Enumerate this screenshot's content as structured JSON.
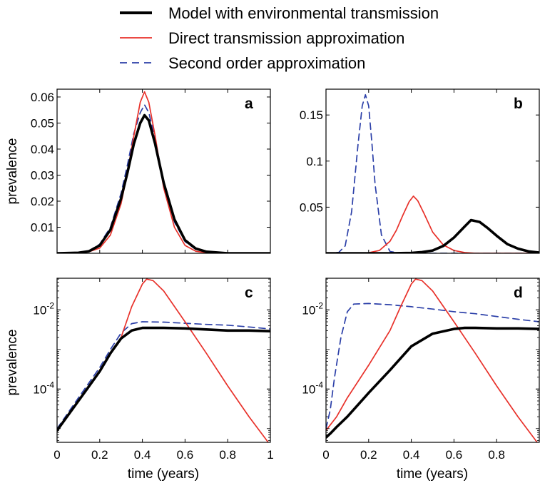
{
  "legend": {
    "entries": [
      {
        "label": "Model with environmental transmission",
        "color": "#000000",
        "style": "solid-thick"
      },
      {
        "label": "Direct transmission approximation",
        "color": "#e8312a",
        "style": "solid"
      },
      {
        "label": "Second order approximation",
        "color": "#2b3fa8",
        "style": "dashed"
      }
    ]
  },
  "colors": {
    "model": "#000000",
    "direct": "#e8312a",
    "second": "#2b3fa8"
  },
  "chart_data": [
    {
      "panel": "a",
      "type": "line",
      "yscale": "linear",
      "xlim": [
        0,
        1
      ],
      "ylim": [
        0,
        0.063
      ],
      "ylabel": "prevalence",
      "xlabel": "",
      "yticks": [
        0.01,
        0.02,
        0.03,
        0.04,
        0.05,
        0.06
      ],
      "yticklabels": [
        "0.01",
        "0.02",
        "0.03",
        "0.04",
        "0.05",
        "0.06"
      ],
      "xticks": [
        0,
        0.2,
        0.4,
        0.6,
        0.8,
        1
      ],
      "xticklabels": [],
      "series": [
        {
          "key": "model",
          "x": [
            0,
            0.1,
            0.15,
            0.2,
            0.25,
            0.3,
            0.33,
            0.36,
            0.39,
            0.41,
            0.43,
            0.46,
            0.5,
            0.55,
            0.6,
            0.65,
            0.7,
            0.8,
            1
          ],
          "y": [
            0,
            0.0002,
            0.0008,
            0.003,
            0.009,
            0.021,
            0.031,
            0.042,
            0.05,
            0.053,
            0.051,
            0.042,
            0.027,
            0.013,
            0.005,
            0.0018,
            0.0006,
            0,
            0
          ]
        },
        {
          "key": "direct",
          "x": [
            0,
            0.1,
            0.15,
            0.2,
            0.25,
            0.3,
            0.33,
            0.36,
            0.39,
            0.41,
            0.43,
            0.46,
            0.5,
            0.55,
            0.6,
            0.65,
            0.7,
            0.8,
            1
          ],
          "y": [
            0,
            0.0001,
            0.0006,
            0.002,
            0.007,
            0.019,
            0.031,
            0.045,
            0.058,
            0.062,
            0.058,
            0.045,
            0.025,
            0.01,
            0.003,
            0.0008,
            0.0002,
            0,
            0
          ]
        },
        {
          "key": "second",
          "x": [
            0,
            0.1,
            0.15,
            0.2,
            0.25,
            0.3,
            0.33,
            0.36,
            0.39,
            0.41,
            0.43,
            0.46,
            0.5,
            0.55,
            0.6,
            0.65,
            0.7,
            0.8,
            1
          ],
          "y": [
            0,
            0.0002,
            0.0009,
            0.0035,
            0.01,
            0.023,
            0.034,
            0.046,
            0.054,
            0.057,
            0.054,
            0.044,
            0.027,
            0.012,
            0.0045,
            0.0015,
            0.0005,
            0,
            0
          ]
        }
      ]
    },
    {
      "panel": "b",
      "type": "line",
      "yscale": "linear",
      "xlim": [
        0,
        1
      ],
      "ylim": [
        0,
        0.178
      ],
      "ylabel": "",
      "xlabel": "",
      "yticks": [
        0.05,
        0.1,
        0.15
      ],
      "yticklabels": [
        "0.05",
        "0.1",
        "0.15"
      ],
      "xticks": [
        0,
        0.2,
        0.4,
        0.6,
        0.8,
        1
      ],
      "xticklabels": [],
      "series": [
        {
          "key": "model",
          "x": [
            0,
            0.3,
            0.4,
            0.45,
            0.5,
            0.55,
            0.6,
            0.65,
            0.68,
            0.72,
            0.76,
            0.8,
            0.85,
            0.9,
            0.95,
            1
          ],
          "y": [
            0,
            0,
            0.0003,
            0.0012,
            0.003,
            0.008,
            0.017,
            0.029,
            0.036,
            0.034,
            0.027,
            0.019,
            0.01,
            0.005,
            0.002,
            0.0008
          ]
        },
        {
          "key": "direct",
          "x": [
            0,
            0.15,
            0.2,
            0.25,
            0.3,
            0.33,
            0.36,
            0.39,
            0.41,
            0.43,
            0.46,
            0.5,
            0.55,
            0.6,
            0.65,
            0.7,
            1
          ],
          "y": [
            0,
            0.0001,
            0.0006,
            0.003,
            0.013,
            0.025,
            0.041,
            0.056,
            0.062,
            0.057,
            0.043,
            0.023,
            0.009,
            0.003,
            0.0008,
            0,
            0
          ]
        },
        {
          "key": "second",
          "x": [
            0,
            0.06,
            0.09,
            0.12,
            0.15,
            0.17,
            0.185,
            0.2,
            0.215,
            0.23,
            0.26,
            0.3,
            0.35,
            1
          ],
          "y": [
            0,
            0.001,
            0.008,
            0.045,
            0.118,
            0.16,
            0.172,
            0.16,
            0.12,
            0.075,
            0.02,
            0.002,
            0,
            0
          ]
        }
      ]
    },
    {
      "panel": "c",
      "type": "line",
      "yscale": "log",
      "xlim": [
        0,
        1
      ],
      "ylim": [
        4.5e-06,
        0.063
      ],
      "ylabel": "prevalence",
      "xlabel": "time (years)",
      "yticks": [
        0.01,
        0.0001
      ],
      "yticklabels": [
        "10^-2",
        "10^-4"
      ],
      "xticks": [
        0,
        0.2,
        0.4,
        0.6,
        0.8,
        1
      ],
      "xticklabels": [
        "0",
        "0.2",
        "0.4",
        "0.6",
        "0.8",
        "1"
      ],
      "series": [
        {
          "key": "model",
          "x": [
            0,
            0.1,
            0.2,
            0.25,
            0.3,
            0.35,
            0.4,
            0.5,
            0.6,
            0.7,
            0.8,
            0.9,
            1
          ],
          "y": [
            9e-06,
            5e-05,
            0.00028,
            0.0008,
            0.0019,
            0.003,
            0.0035,
            0.0035,
            0.0034,
            0.0032,
            0.003,
            0.003,
            0.0029
          ]
        },
        {
          "key": "direct",
          "x": [
            0,
            0.1,
            0.2,
            0.3,
            0.35,
            0.4,
            0.42,
            0.45,
            0.5,
            0.6,
            0.7,
            0.8,
            0.9,
            0.99
          ],
          "y": [
            9e-06,
            5e-05,
            0.0003,
            0.002,
            0.012,
            0.045,
            0.06,
            0.055,
            0.03,
            0.005,
            0.0008,
            0.00012,
            2e-05,
            4.5e-06
          ]
        },
        {
          "key": "second",
          "x": [
            0,
            0.1,
            0.2,
            0.25,
            0.3,
            0.35,
            0.4,
            0.5,
            0.6,
            0.7,
            0.8,
            0.9,
            1
          ],
          "y": [
            1e-05,
            6e-05,
            0.00035,
            0.001,
            0.0026,
            0.0045,
            0.005,
            0.0049,
            0.0046,
            0.0043,
            0.0041,
            0.0037,
            0.0033
          ]
        }
      ]
    },
    {
      "panel": "d",
      "type": "line",
      "yscale": "log",
      "xlim": [
        0,
        1
      ],
      "ylim": [
        4.5e-06,
        0.063
      ],
      "ylabel": "",
      "xlabel": "time (years)",
      "yticks": [
        0.01,
        0.0001
      ],
      "yticklabels": [
        "10^-2",
        "10^-4"
      ],
      "xticks": [
        0,
        0.2,
        0.4,
        0.6,
        0.8,
        1
      ],
      "xticklabels": [
        "0",
        "0.2",
        "0.4",
        "0.6",
        "0.8",
        ""
      ],
      "series": [
        {
          "key": "model",
          "x": [
            0,
            0.02,
            0.05,
            0.1,
            0.2,
            0.3,
            0.4,
            0.5,
            0.6,
            0.65,
            0.7,
            0.8,
            0.9,
            1
          ],
          "y": [
            6e-06,
            7.5e-06,
            1.1e-05,
            2e-05,
            8e-05,
            0.0003,
            0.0012,
            0.0025,
            0.0033,
            0.0035,
            0.0035,
            0.0034,
            0.0034,
            0.0033
          ]
        },
        {
          "key": "direct",
          "x": [
            0,
            0.05,
            0.1,
            0.2,
            0.3,
            0.35,
            0.4,
            0.42,
            0.45,
            0.5,
            0.6,
            0.7,
            0.8,
            0.9,
            0.99
          ],
          "y": [
            9e-06,
            2e-05,
            6e-05,
            0.0004,
            0.003,
            0.012,
            0.045,
            0.06,
            0.055,
            0.03,
            0.005,
            0.0008,
            0.00012,
            2e-05,
            4.5e-06
          ]
        },
        {
          "key": "second",
          "x": [
            0,
            0.02,
            0.04,
            0.07,
            0.1,
            0.13,
            0.2,
            0.3,
            0.4,
            0.5,
            0.6,
            0.7,
            0.8,
            0.9,
            1
          ],
          "y": [
            1e-05,
            3e-05,
            0.0002,
            0.002,
            0.009,
            0.014,
            0.0145,
            0.0135,
            0.012,
            0.0105,
            0.009,
            0.008,
            0.0068,
            0.0058,
            0.005
          ]
        }
      ]
    }
  ]
}
